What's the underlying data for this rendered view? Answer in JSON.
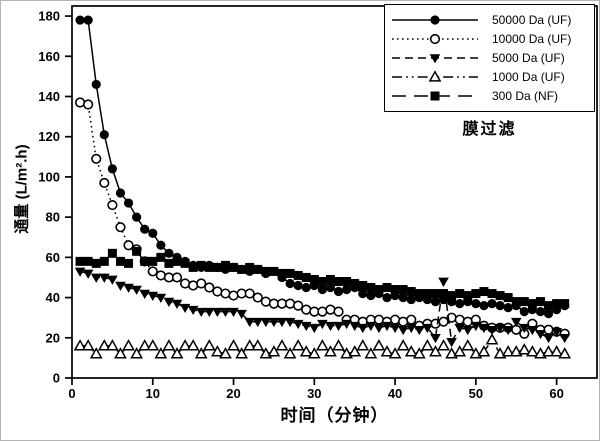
{
  "figure": {
    "background": "#ffffff",
    "frame_color": "#b4b4b4"
  },
  "chart_data": {
    "type": "line",
    "title": "",
    "xlabel": "时间（分钟）",
    "ylabel": "通量 (L/m².h)",
    "annotation": "膜过滤",
    "xlim": [
      0,
      65
    ],
    "ylim": [
      0,
      185
    ],
    "xticks": [
      0,
      10,
      20,
      30,
      40,
      50,
      60
    ],
    "yticks": [
      0,
      20,
      40,
      60,
      80,
      100,
      120,
      140,
      160,
      180
    ],
    "grid": false,
    "legend_position": "top-right",
    "axis_color": "#000000",
    "open_marker_fill": "#ffffff",
    "x": [
      1,
      2,
      3,
      4,
      5,
      6,
      7,
      8,
      9,
      10,
      11,
      12,
      13,
      14,
      15,
      16,
      17,
      18,
      19,
      20,
      21,
      22,
      23,
      24,
      25,
      26,
      27,
      28,
      29,
      30,
      31,
      32,
      33,
      34,
      35,
      36,
      37,
      38,
      39,
      40,
      41,
      42,
      43,
      44,
      45,
      46,
      47,
      48,
      49,
      50,
      51,
      52,
      53,
      54,
      55,
      56,
      57,
      58,
      59,
      60,
      61
    ],
    "series": [
      {
        "name": "50000 Da (UF)",
        "marker": "circle-filled",
        "line": "solid",
        "values": [
          178,
          178,
          146,
          121,
          104,
          92,
          87,
          80,
          74,
          72,
          66,
          62,
          60,
          58,
          56,
          55,
          56,
          55,
          54,
          55,
          54,
          53,
          54,
          52,
          53,
          50,
          47,
          46,
          45,
          46,
          44,
          45,
          43,
          44,
          45,
          42,
          41,
          42,
          40,
          41,
          40,
          39,
          40,
          39,
          38,
          39,
          38,
          37,
          38,
          37,
          36,
          37,
          36,
          35,
          36,
          33,
          34,
          33,
          32,
          34,
          36
        ]
      },
      {
        "name": "10000 Da (UF)",
        "marker": "circle-open",
        "line": "dotted",
        "values": [
          137,
          136,
          109,
          97,
          86,
          75,
          66,
          64,
          58,
          53,
          51,
          50,
          50,
          47,
          46,
          47,
          45,
          43,
          42,
          41,
          42,
          42,
          40,
          38,
          37,
          37,
          37,
          36,
          34,
          33,
          33,
          34,
          33,
          29,
          29,
          28,
          29,
          29,
          28,
          29,
          28,
          29,
          26,
          27,
          27,
          28,
          30,
          29,
          28,
          29,
          26,
          25,
          25,
          25,
          24,
          22,
          27,
          24,
          24,
          23,
          22
        ]
      },
      {
        "name": "5000 Da (UF)",
        "marker": "triangle-down-filled",
        "line": "dashed",
        "values": [
          53,
          52,
          50,
          50,
          49,
          46,
          45,
          44,
          42,
          41,
          40,
          38,
          37,
          35,
          34,
          33,
          33,
          33,
          33,
          33,
          32,
          28,
          28,
          28,
          28,
          28,
          28,
          27,
          26,
          25,
          27,
          26,
          26,
          27,
          26,
          25,
          26,
          25,
          26,
          25,
          24,
          25,
          24,
          25,
          20,
          48,
          18,
          25,
          24,
          26,
          25,
          24,
          25,
          24,
          28,
          25,
          24,
          22,
          20,
          23,
          20
        ]
      },
      {
        "name": "1000 Da (UF)",
        "marker": "triangle-up-open",
        "line": "dash-dot-dot",
        "values": [
          16,
          16,
          12,
          16,
          16,
          12,
          16,
          12,
          16,
          16,
          12,
          16,
          12,
          16,
          16,
          12,
          16,
          13,
          12,
          16,
          12,
          16,
          16,
          12,
          13,
          16,
          12,
          16,
          13,
          12,
          16,
          13,
          16,
          12,
          13,
          16,
          12,
          16,
          13,
          12,
          16,
          13,
          12,
          16,
          13,
          16,
          12,
          13,
          16,
          12,
          13,
          19,
          12,
          13,
          13,
          14,
          13,
          12,
          13,
          13,
          12
        ]
      },
      {
        "name": "300 Da (NF)",
        "marker": "square-filled",
        "line": "long-dash",
        "values": [
          58,
          58,
          57,
          58,
          62,
          58,
          57,
          63,
          58,
          58,
          60,
          57,
          58,
          57,
          55,
          56,
          55,
          55,
          56,
          55,
          54,
          55,
          54,
          53,
          53,
          52,
          52,
          51,
          50,
          49,
          48,
          49,
          48,
          48,
          47,
          46,
          45,
          44,
          45,
          44,
          44,
          43,
          42,
          42,
          42,
          42,
          41,
          42,
          41,
          42,
          43,
          42,
          41,
          40,
          38,
          38,
          37,
          38,
          36,
          37,
          37
        ]
      }
    ]
  }
}
